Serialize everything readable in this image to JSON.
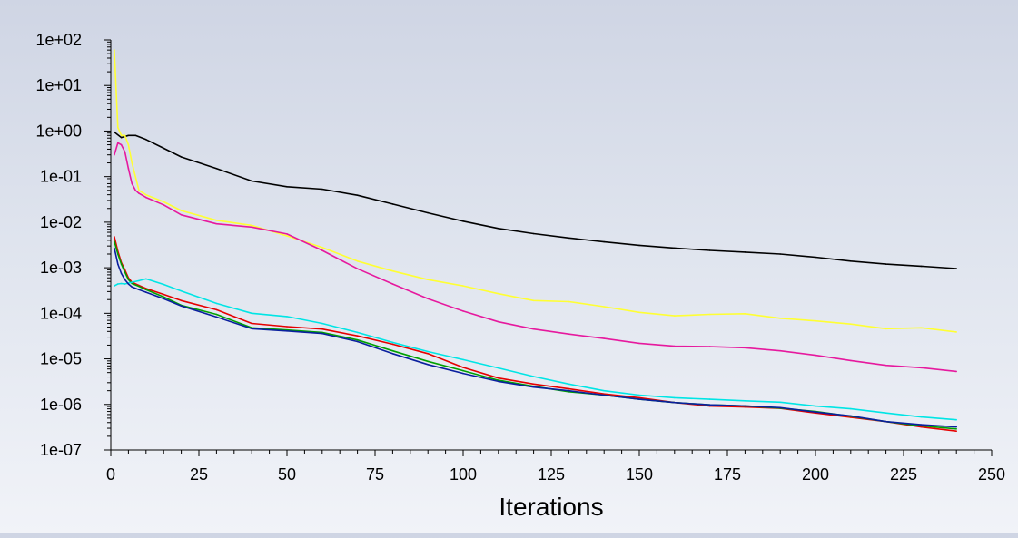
{
  "chart_data": {
    "type": "line",
    "title": "",
    "xlabel": "Iterations",
    "ylabel": "",
    "xlim": [
      0,
      250
    ],
    "ylim": [
      1e-07,
      100
    ],
    "yscale": "log",
    "grid": false,
    "legend": "none",
    "xticks": [
      "0",
      "25",
      "50",
      "75",
      "100",
      "125",
      "150",
      "175",
      "200",
      "225",
      "250"
    ],
    "yticks": [
      "1e+02",
      "1e+01",
      "1e+00",
      "1e-01",
      "1e-02",
      "1e-03",
      "1e-04",
      "1e-05",
      "1e-06",
      "1e-07"
    ],
    "series": [
      {
        "color": "#000000",
        "x": [
          1,
          3,
          5,
          7,
          10,
          15,
          20,
          30,
          40,
          50,
          60,
          70,
          80,
          90,
          100,
          110,
          120,
          130,
          140,
          150,
          160,
          170,
          180,
          190,
          200,
          210,
          220,
          230,
          240
        ],
        "y": [
          0.95,
          0.72,
          0.8,
          0.8,
          0.65,
          0.42,
          0.27,
          0.15,
          0.08,
          0.06,
          0.053,
          0.039,
          0.025,
          0.016,
          0.0105,
          0.0073,
          0.0056,
          0.0045,
          0.0037,
          0.0031,
          0.0027,
          0.0024,
          0.0022,
          0.002,
          0.0017,
          0.0014,
          0.0012,
          0.00108,
          0.00096
        ]
      },
      {
        "color": "#ffff33",
        "x": [
          1,
          2,
          3,
          4,
          5,
          6,
          8,
          10,
          15,
          20,
          30,
          40,
          50,
          60,
          70,
          80,
          90,
          100,
          110,
          120,
          130,
          140,
          150,
          160,
          170,
          180,
          190,
          200,
          210,
          220,
          230,
          240
        ],
        "y": [
          60,
          1.2,
          0.8,
          0.8,
          0.5,
          0.2,
          0.05,
          0.04,
          0.028,
          0.018,
          0.011,
          0.0085,
          0.005,
          0.0028,
          0.0014,
          0.00085,
          0.00055,
          0.0004,
          0.00027,
          0.00019,
          0.00018,
          0.00014,
          0.000105,
          8.8e-05,
          9.5e-05,
          9.8e-05,
          7.8e-05,
          6.8e-05,
          5.8e-05,
          4.6e-05,
          4.8e-05,
          3.9e-05
        ]
      },
      {
        "color": "#e6199e",
        "x": [
          1,
          2,
          3,
          4,
          5,
          6,
          7,
          8,
          10,
          15,
          20,
          30,
          40,
          50,
          60,
          70,
          80,
          90,
          100,
          110,
          120,
          130,
          140,
          150,
          160,
          170,
          180,
          190,
          200,
          210,
          220,
          230,
          240
        ],
        "y": [
          0.3,
          0.55,
          0.5,
          0.35,
          0.15,
          0.07,
          0.05,
          0.043,
          0.035,
          0.024,
          0.0145,
          0.0092,
          0.0078,
          0.0055,
          0.0024,
          0.00095,
          0.00044,
          0.00021,
          0.000112,
          6.5e-05,
          4.5e-05,
          3.5e-05,
          2.8e-05,
          2.2e-05,
          1.9e-05,
          1.85e-05,
          1.75e-05,
          1.5e-05,
          1.2e-05,
          9.2e-06,
          7.2e-06,
          6.4e-06,
          5.3e-06
        ]
      },
      {
        "color": "#e60000",
        "x": [
          1,
          2,
          3,
          4,
          5,
          6,
          8,
          10,
          15,
          20,
          30,
          40,
          50,
          60,
          70,
          80,
          90,
          100,
          110,
          120,
          130,
          140,
          150,
          160,
          170,
          180,
          190,
          200,
          210,
          220,
          230,
          240
        ],
        "y": [
          0.0048,
          0.0023,
          0.0013,
          0.0009,
          0.0006,
          0.00048,
          0.00041,
          0.00035,
          0.00026,
          0.00019,
          0.00012,
          6e-05,
          5.1e-05,
          4.5e-05,
          3.2e-05,
          2.1e-05,
          1.3e-05,
          6.5e-06,
          3.8e-06,
          2.8e-06,
          2.2e-06,
          1.7e-06,
          1.4e-06,
          1.1e-06,
          9.2e-07,
          8.8e-07,
          8.2e-07,
          6.5e-07,
          5.2e-07,
          4.2e-07,
          3.2e-07,
          2.6e-07
        ]
      },
      {
        "color": "#00a000",
        "x": [
          1,
          2,
          3,
          4,
          5,
          6,
          8,
          10,
          15,
          20,
          30,
          40,
          50,
          60,
          70,
          80,
          90,
          100,
          110,
          120,
          130,
          140,
          150,
          160,
          170,
          180,
          190,
          200,
          210,
          220,
          230,
          240
        ],
        "y": [
          0.0038,
          0.002,
          0.0012,
          0.0008,
          0.00055,
          0.00045,
          0.00039,
          0.00033,
          0.00023,
          0.00015,
          9.5e-05,
          4.8e-05,
          4.3e-05,
          3.8e-05,
          2.6e-05,
          1.5e-05,
          8.8e-06,
          5.5e-06,
          3.4e-06,
          2.5e-06,
          1.9e-06,
          1.6e-06,
          1.3e-06,
          1.1e-06,
          9.8e-07,
          9.3e-07,
          8.3e-07,
          7e-07,
          5.5e-07,
          4.2e-07,
          3.4e-07,
          2.9e-07
        ]
      },
      {
        "color": "#00e5e5",
        "x": [
          1,
          2,
          3,
          4,
          5,
          6,
          8,
          10,
          15,
          20,
          30,
          40,
          50,
          60,
          70,
          80,
          90,
          100,
          110,
          120,
          130,
          140,
          150,
          160,
          170,
          180,
          190,
          200,
          210,
          220,
          230,
          240
        ],
        "y": [
          0.0004,
          0.00044,
          0.00045,
          0.00044,
          0.00046,
          0.00048,
          0.00052,
          0.00057,
          0.00043,
          0.00031,
          0.000165,
          0.0001,
          8.5e-05,
          6e-05,
          3.8e-05,
          2.3e-05,
          1.45e-05,
          9.6e-06,
          6.3e-06,
          4.1e-06,
          2.8e-06,
          2e-06,
          1.6e-06,
          1.4e-06,
          1.3e-06,
          1.2e-06,
          1.12e-06,
          9.2e-07,
          8e-07,
          6.5e-07,
          5.3e-07,
          4.6e-07
        ]
      },
      {
        "color": "#0a1f9e",
        "x": [
          1,
          2,
          3,
          4,
          5,
          6,
          8,
          10,
          15,
          20,
          30,
          40,
          50,
          60,
          70,
          80,
          90,
          100,
          110,
          120,
          130,
          140,
          150,
          160,
          170,
          180,
          190,
          200,
          210,
          220,
          230,
          240
        ],
        "y": [
          0.0027,
          0.0012,
          0.00075,
          0.00055,
          0.00044,
          0.00038,
          0.00033,
          0.00029,
          0.00021,
          0.000145,
          8.3e-05,
          4.6e-05,
          4.1e-05,
          3.6e-05,
          2.4e-05,
          1.3e-05,
          7.5e-06,
          4.8e-06,
          3.2e-06,
          2.4e-06,
          2e-06,
          1.6e-06,
          1.3e-06,
          1.1e-06,
          9.8e-07,
          9.3e-07,
          8.5e-07,
          6.8e-07,
          5.6e-07,
          4.2e-07,
          3.6e-07,
          3.2e-07
        ]
      }
    ]
  }
}
